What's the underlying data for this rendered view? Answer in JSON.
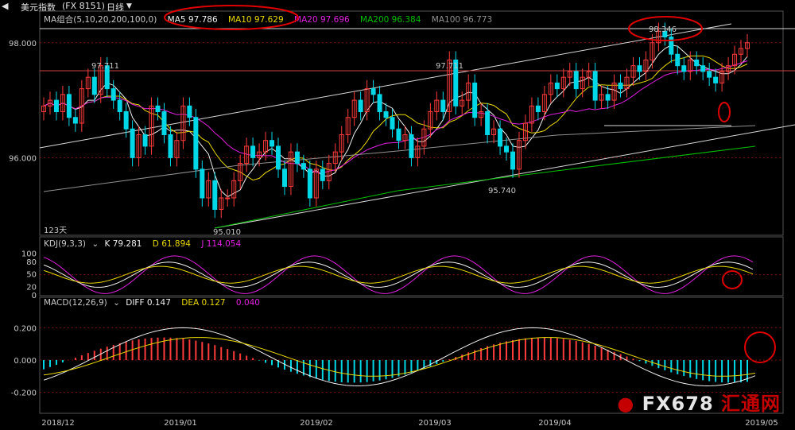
{
  "header": {
    "title": "美元指数",
    "code": "(FX 8151)",
    "period": "日线"
  },
  "colors": {
    "bg": "#000000",
    "up": "#ff3b3b",
    "down": "#00d8e8",
    "ma5": "#f0f0f0",
    "ma10": "#e8d800",
    "ma20": "#e020e0",
    "ma200": "#00c000",
    "ma100": "#909090",
    "circle": "#e00000",
    "grid": "#7a1010"
  },
  "ma_legend": {
    "label": "MA组合(5,10,20,200,100,0)",
    "ma5": "MA5 97.786",
    "ma10": "MA10 97.629",
    "ma20": "MA20 97.696",
    "ma200": "MA200 96.384",
    "ma100": "MA100 96.773"
  },
  "kdj_legend": {
    "label": "KDJ(9,3,3)",
    "k": "K 79.281",
    "d": "D 61.894",
    "j": "J 114.054"
  },
  "macd_legend": {
    "label": "MACD(12,26,9)",
    "diff": "DIFF 0.147",
    "dea": "DEA 0.127",
    "macd": "0.040"
  },
  "annotations": {
    "high1": "97.711",
    "high2": "97.711",
    "high3": "98.346",
    "low1": "95.010",
    "low2": "95.740",
    "days": "123天"
  },
  "watermark": {
    "brand": "FX678",
    "cn": "汇通网"
  },
  "chart_data": [
    {
      "type": "candlestick",
      "title": "美元指数 (FX 8151) 日线",
      "ylim": [
        94.65,
        98.55
      ],
      "y_ticks": [
        "98.000",
        "96.000"
      ],
      "x_ticks": [
        "2018/12",
        "2019/01",
        "2019/02",
        "2019/03",
        "2019/04",
        "2019/05"
      ],
      "close": [
        96.9,
        97.0,
        96.8,
        97.1,
        96.7,
        96.6,
        97.2,
        97.4,
        97.1,
        97.6,
        97.2,
        97.0,
        96.8,
        96.5,
        96.0,
        96.4,
        96.2,
        96.9,
        96.8,
        96.4,
        96.0,
        96.3,
        96.9,
        96.7,
        95.8,
        95.3,
        95.6,
        95.1,
        95.3,
        95.3,
        95.6,
        95.9,
        96.2,
        96.0,
        96.1,
        96.3,
        96.2,
        95.8,
        95.5,
        96.1,
        95.9,
        95.8,
        95.3,
        95.8,
        95.6,
        95.9,
        96.1,
        96.4,
        96.7,
        97.0,
        96.8,
        97.2,
        97.1,
        96.8,
        96.7,
        96.5,
        96.3,
        96.4,
        96.0,
        96.2,
        96.5,
        96.8,
        97.0,
        96.8,
        97.7,
        96.9,
        97.0,
        97.3,
        96.7,
        96.8,
        96.4,
        96.5,
        96.2,
        96.1,
        95.8,
        96.3,
        96.6,
        96.9,
        96.8,
        97.1,
        97.3,
        97.2,
        97.4,
        97.5,
        97.2,
        97.4,
        97.5,
        97.0,
        97.1,
        97.0,
        97.3,
        97.2,
        97.4,
        97.6,
        97.5,
        97.7,
        98.0,
        98.2,
        98.1,
        97.8,
        97.6,
        97.5,
        97.7,
        97.6,
        97.5,
        97.4,
        97.3,
        97.5,
        97.6,
        97.8,
        97.9,
        98.0
      ],
      "open": [
        96.8,
        96.9,
        97.0,
        96.8,
        97.1,
        96.7,
        96.6,
        97.2,
        97.4,
        97.1,
        97.6,
        97.2,
        97.0,
        96.8,
        96.5,
        96.0,
        96.4,
        96.2,
        96.9,
        96.8,
        96.4,
        96.0,
        96.3,
        96.9,
        96.7,
        95.8,
        95.3,
        95.6,
        95.1,
        95.3,
        95.3,
        95.6,
        95.9,
        96.2,
        96.0,
        96.1,
        96.3,
        96.2,
        95.8,
        95.5,
        96.1,
        95.9,
        95.8,
        95.3,
        95.8,
        95.6,
        95.9,
        96.1,
        96.4,
        96.7,
        97.0,
        96.8,
        97.2,
        97.1,
        96.8,
        96.7,
        96.5,
        96.3,
        96.4,
        96.0,
        96.2,
        96.5,
        96.8,
        97.0,
        96.8,
        97.7,
        96.9,
        97.0,
        97.3,
        96.7,
        96.8,
        96.4,
        96.5,
        96.2,
        96.1,
        95.8,
        96.3,
        96.6,
        96.9,
        96.8,
        97.1,
        97.3,
        97.2,
        97.4,
        97.5,
        97.2,
        97.4,
        97.5,
        97.0,
        97.1,
        97.0,
        97.3,
        97.2,
        97.4,
        97.6,
        97.5,
        97.7,
        98.0,
        98.2,
        98.1,
        97.8,
        97.6,
        97.5,
        97.7,
        97.6,
        97.5,
        97.4,
        97.3,
        97.5,
        97.6,
        97.8,
        97.9
      ]
    },
    {
      "type": "line",
      "title": "KDJ(9,3,3)",
      "ylim": [
        0,
        110
      ],
      "y_ticks": [
        "100",
        "80",
        "50",
        "20",
        "0"
      ]
    },
    {
      "type": "bar",
      "title": "MACD(12,26,9)",
      "ylim": [
        -0.33,
        0.33
      ],
      "y_ticks": [
        "0.200",
        "0.000",
        "-0.200"
      ]
    }
  ]
}
